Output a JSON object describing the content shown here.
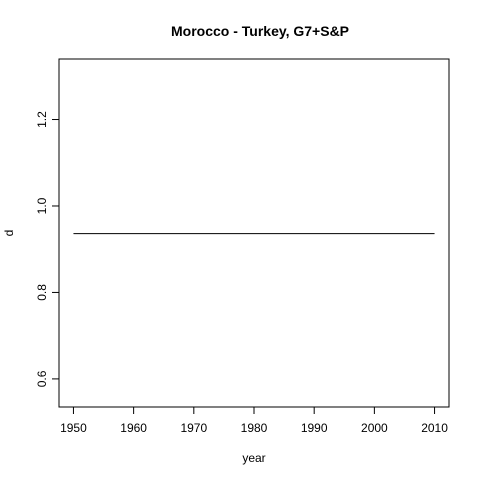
{
  "chart_data": {
    "type": "line",
    "title": "Morocco - Turkey, G7+S&P",
    "xlabel": "year",
    "ylabel": "d",
    "xlim": [
      1947.6,
      2012.4
    ],
    "ylim": [
      0.535,
      1.34
    ],
    "xticks": [
      1950,
      1960,
      1970,
      1980,
      1990,
      2000,
      2010
    ],
    "yticks": [
      0.6,
      0.8,
      1.0,
      1.2
    ],
    "ytick_labels": [
      "0.6",
      "0.8",
      "1.0",
      "1.2"
    ],
    "grid": false,
    "series": [
      {
        "x": [
          1950,
          2010
        ],
        "y": [
          0.936,
          0.936
        ],
        "color": "#000000"
      }
    ]
  }
}
